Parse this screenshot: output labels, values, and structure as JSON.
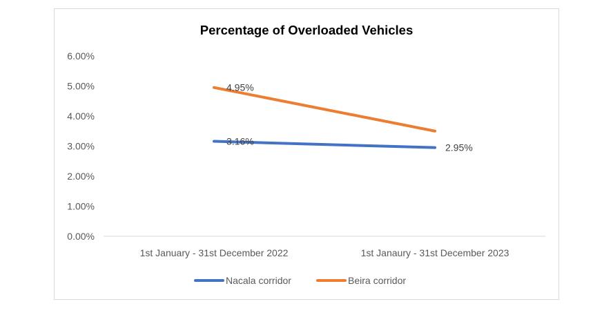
{
  "chart_data": {
    "type": "line",
    "title": "Percentage of Overloaded Vehicles",
    "xlabel": "",
    "ylabel": "",
    "categories": [
      "1st January - 31st December 2022",
      "1st Janaury - 31st December 2023"
    ],
    "ylim": [
      0,
      0.06
    ],
    "y_ticks": [
      0,
      0.01,
      0.02,
      0.03,
      0.04,
      0.05,
      0.06
    ],
    "y_tick_labels": [
      "0.00%",
      "1.00%",
      "2.00%",
      "3.00%",
      "4.00%",
      "5.00%",
      "6.00%"
    ],
    "grid": false,
    "legend_position": "bottom",
    "series": [
      {
        "name": "Nacala corridor",
        "color": "#4472c4",
        "values": [
          0.0316,
          0.0295
        ],
        "labels": [
          "3.16%",
          "2.95%"
        ]
      },
      {
        "name": "Beira corridor",
        "color": "#ed7d31",
        "values": [
          0.0495,
          0.035
        ],
        "labels": [
          "4.95%",
          ""
        ]
      }
    ]
  }
}
